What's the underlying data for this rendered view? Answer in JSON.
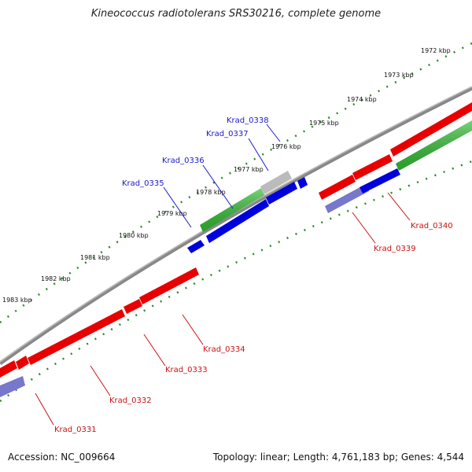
{
  "title": "Kineococcus radiotolerans SRS30216, complete genome",
  "footer": {
    "accession": "Accession: NC_009664",
    "summary": "Topology: linear; Length: 4,761,183 bp; Genes: 4,544"
  },
  "colors": {
    "forward": "#e80000",
    "reverse": "#0000dd",
    "green": "#33bb33",
    "grey": "#bbbbbb",
    "slate": "#7777cc",
    "backbone": "#888888",
    "ticks": "#2a8a2a",
    "label_top": "#1a1acc",
    "label_bottom": "#cc1111"
  },
  "kbp_labels": [
    "1972 kbp",
    "1973 kbp",
    "1974 kbp",
    "1975 kbp",
    "1976 kbp",
    "1977 kbp",
    "1978 kbp",
    "1979 kbp",
    "1980 kbp",
    "1981 kbp",
    "1982 kbp",
    "1983 kbp"
  ],
  "gene_labels_top": [
    "Krad_0335",
    "Krad_0336",
    "Krad_0337",
    "Krad_0338"
  ],
  "gene_labels_bottom": [
    "Krad_0331",
    "Krad_0332",
    "Krad_0333",
    "Krad_0334",
    "Krad_0339",
    "Krad_0340"
  ]
}
